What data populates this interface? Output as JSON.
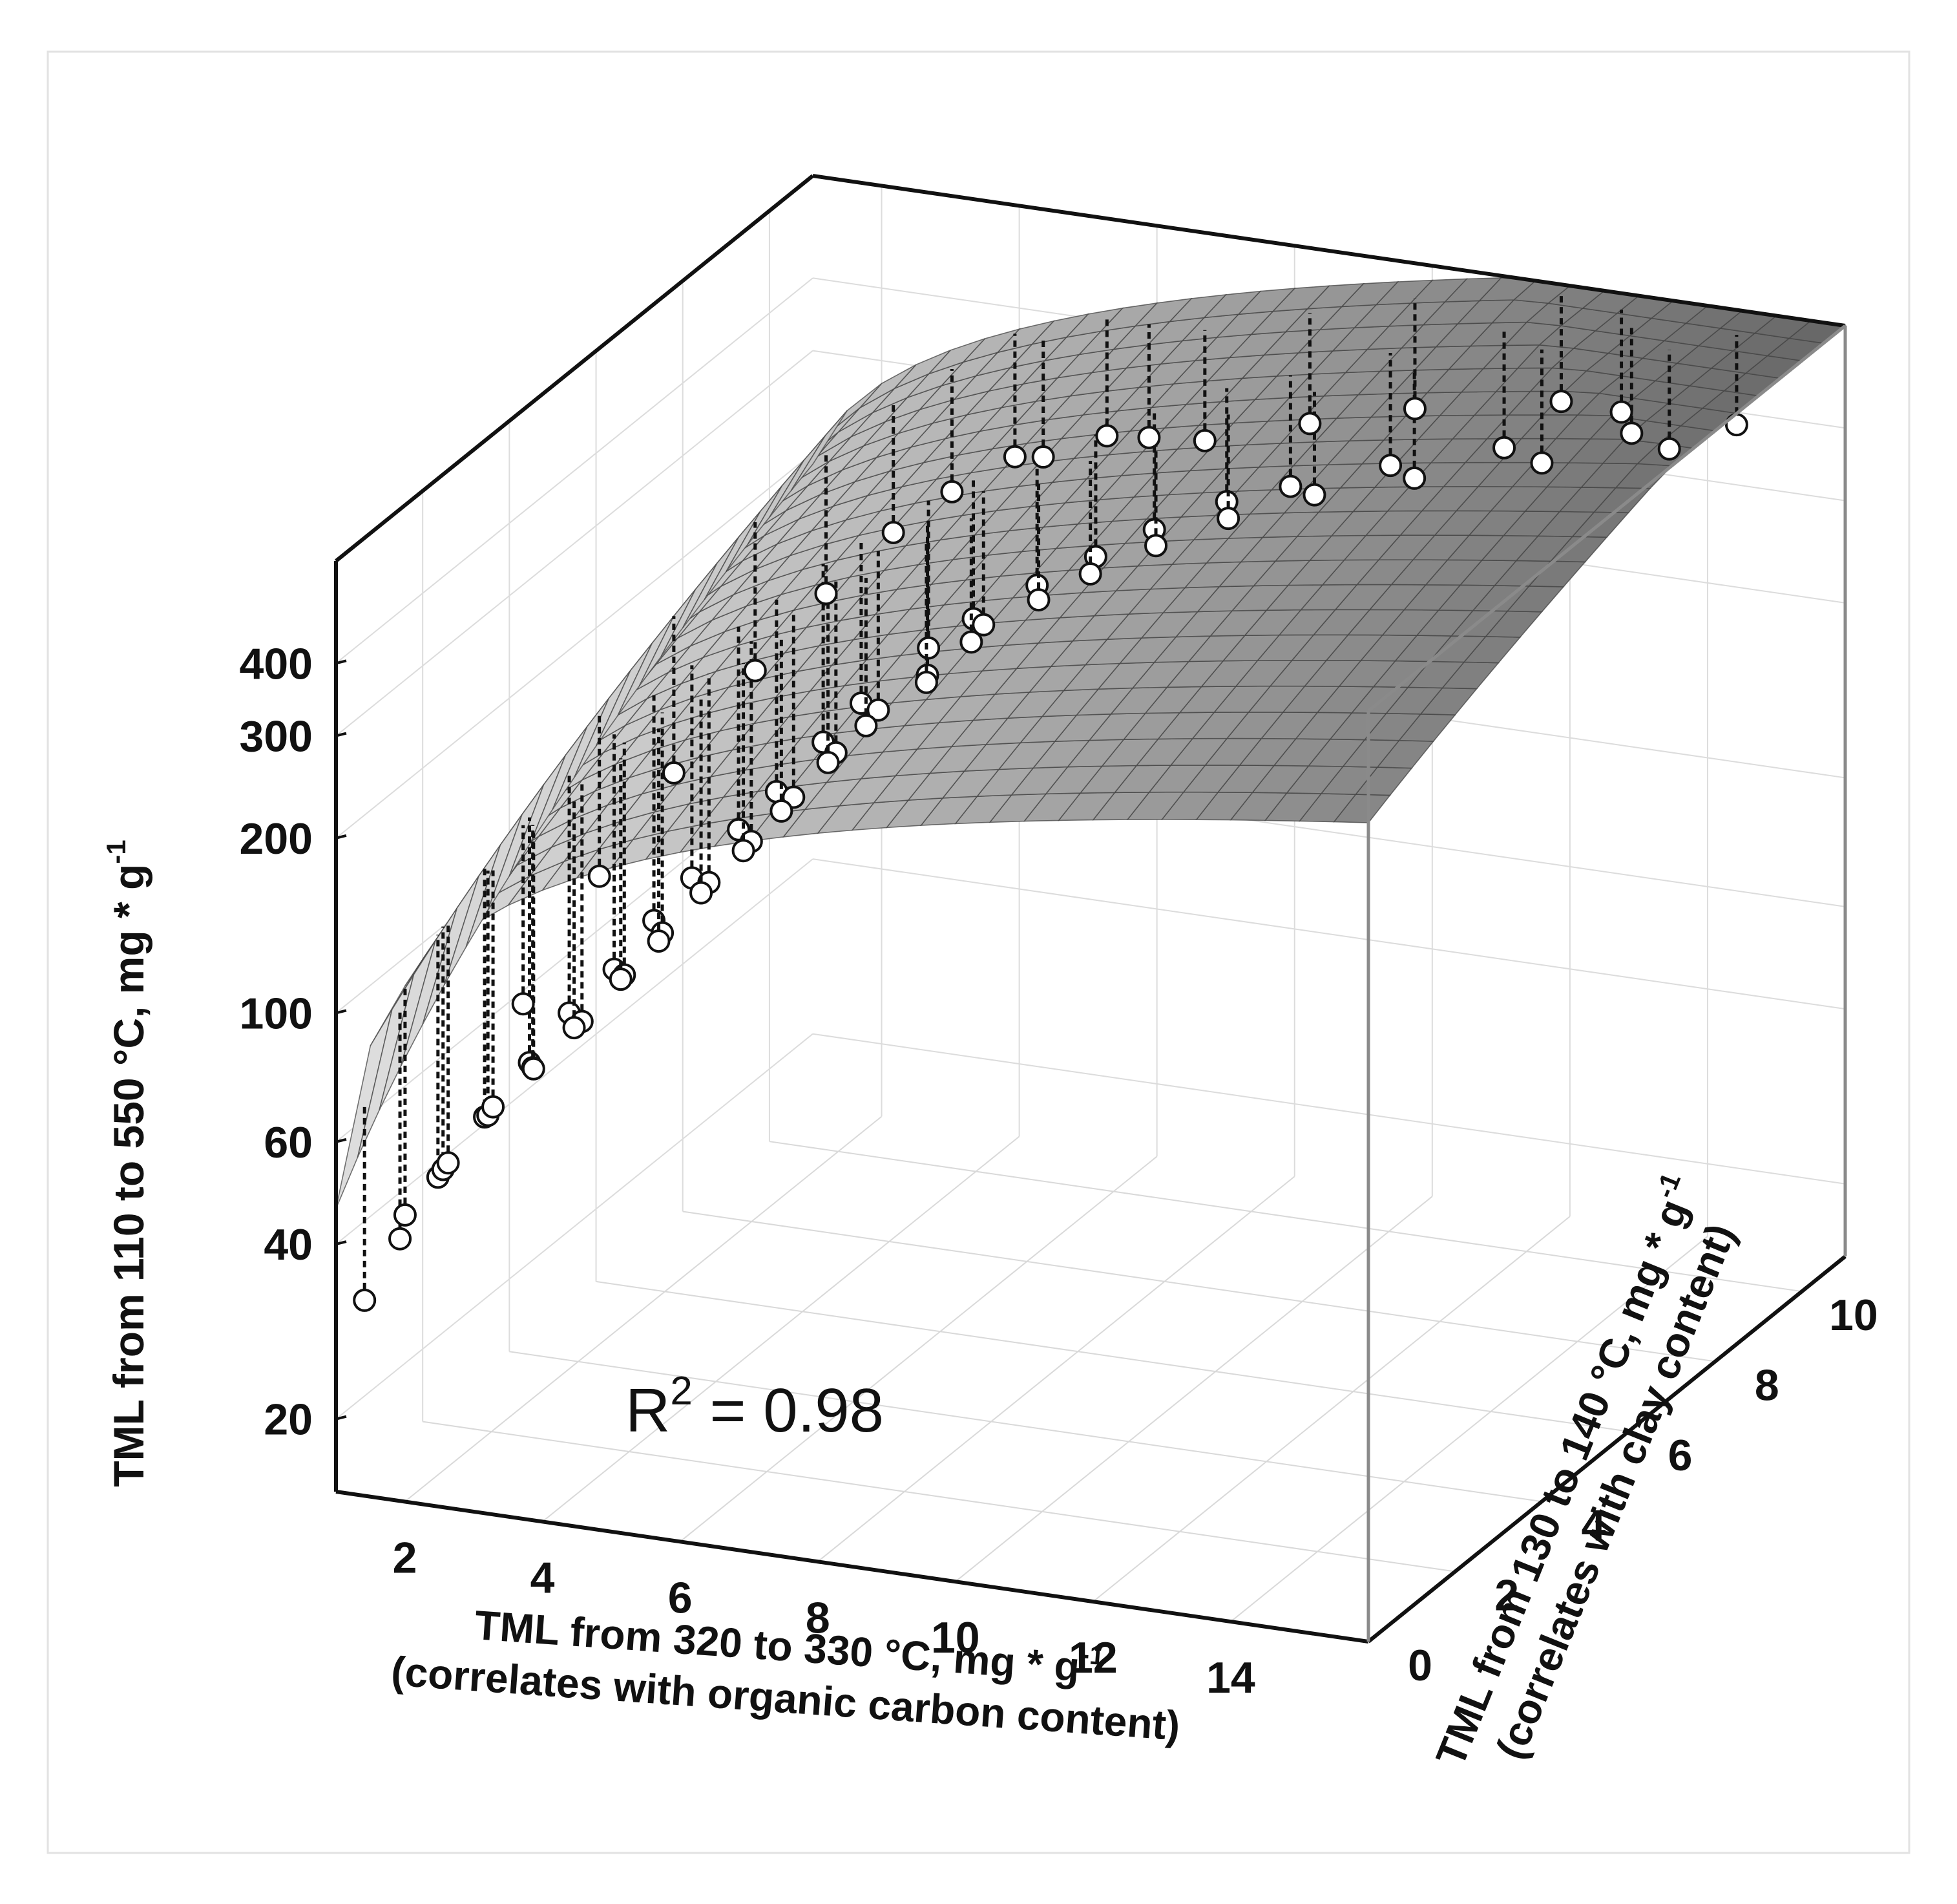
{
  "chart_data": {
    "type": "scatter",
    "subtype": "3d-surface-scatter",
    "annotation": {
      "prefix": "R",
      "superscript": "2",
      "suffix": " = 0.98"
    },
    "x_axis": {
      "label_line1": "TML from 320 to 330 °C, mg * g",
      "label_line1_sup": "-1",
      "label_line2": "(correlates with organic carbon content)",
      "ticks": [
        "2",
        "4",
        "6",
        "8",
        "10",
        "12",
        "14"
      ],
      "range": [
        1,
        16
      ]
    },
    "y_axis": {
      "label_line1": "TML from 130 to 140 °C, mg * g",
      "label_line1_sup": "-1",
      "label_line2": "(correlates with clay content)",
      "ticks": [
        "0",
        "2",
        "4",
        "6",
        "8",
        "10"
      ],
      "range": [
        0,
        11
      ]
    },
    "z_axis": {
      "label": "TML from 110 to 550 °C, mg * g",
      "label_sup": "-1",
      "ticks": [
        "20",
        "40",
        "60",
        "100",
        "200",
        "300",
        "400"
      ],
      "scale": "log",
      "range": [
        15,
        600
      ]
    },
    "surface": {
      "color_light": "#d6d6d6",
      "color_dark": "#5a5a5a",
      "grid": true
    },
    "points": [
      {
        "x": 1.1,
        "y": 0.5,
        "z": 30
      },
      {
        "x": 1.3,
        "y": 1.0,
        "z": 36
      },
      {
        "x": 1.5,
        "y": 0.8,
        "z": 41
      },
      {
        "x": 1.6,
        "y": 1.4,
        "z": 44
      },
      {
        "x": 1.8,
        "y": 1.2,
        "z": 47
      },
      {
        "x": 2.0,
        "y": 1.0,
        "z": 50
      },
      {
        "x": 1.9,
        "y": 2.0,
        "z": 52
      },
      {
        "x": 2.2,
        "y": 1.6,
        "z": 56
      },
      {
        "x": 2.4,
        "y": 1.4,
        "z": 60
      },
      {
        "x": 2.3,
        "y": 2.4,
        "z": 62
      },
      {
        "x": 2.6,
        "y": 2.0,
        "z": 65
      },
      {
        "x": 2.8,
        "y": 1.7,
        "z": 68
      },
      {
        "x": 2.5,
        "y": 3.0,
        "z": 70
      },
      {
        "x": 3.0,
        "y": 2.5,
        "z": 74
      },
      {
        "x": 3.2,
        "y": 2.0,
        "z": 78
      },
      {
        "x": 2.9,
        "y": 3.4,
        "z": 80
      },
      {
        "x": 3.3,
        "y": 3.0,
        "z": 84
      },
      {
        "x": 3.5,
        "y": 2.6,
        "z": 88
      },
      {
        "x": 3.1,
        "y": 4.0,
        "z": 90
      },
      {
        "x": 3.6,
        "y": 3.4,
        "z": 95
      },
      {
        "x": 3.8,
        "y": 3.0,
        "z": 98
      },
      {
        "x": 3.4,
        "y": 4.4,
        "z": 102
      },
      {
        "x": 3.9,
        "y": 4.0,
        "z": 108
      },
      {
        "x": 4.1,
        "y": 3.5,
        "z": 112
      },
      {
        "x": 3.7,
        "y": 5.0,
        "z": 115
      },
      {
        "x": 4.2,
        "y": 4.5,
        "z": 120
      },
      {
        "x": 4.4,
        "y": 4.0,
        "z": 125
      },
      {
        "x": 4.0,
        "y": 5.4,
        "z": 128
      },
      {
        "x": 4.5,
        "y": 5.0,
        "z": 135
      },
      {
        "x": 4.7,
        "y": 4.4,
        "z": 140
      },
      {
        "x": 4.3,
        "y": 6.0,
        "z": 145
      },
      {
        "x": 4.8,
        "y": 5.5,
        "z": 152
      },
      {
        "x": 5.0,
        "y": 5.0,
        "z": 158
      },
      {
        "x": 4.6,
        "y": 6.4,
        "z": 162
      },
      {
        "x": 5.1,
        "y": 6.0,
        "z": 170
      },
      {
        "x": 5.3,
        "y": 5.4,
        "z": 175
      },
      {
        "x": 5.5,
        "y": 6.5,
        "z": 185
      },
      {
        "x": 5.2,
        "y": 7.0,
        "z": 190
      },
      {
        "x": 5.8,
        "y": 6.0,
        "z": 195
      },
      {
        "x": 5.6,
        "y": 7.4,
        "z": 205
      },
      {
        "x": 6.0,
        "y": 7.0,
        "z": 215
      },
      {
        "x": 6.2,
        "y": 6.4,
        "z": 220
      },
      {
        "x": 6.4,
        "y": 7.6,
        "z": 235
      },
      {
        "x": 6.8,
        "y": 7.0,
        "z": 245
      },
      {
        "x": 7.0,
        "y": 8.0,
        "z": 255
      },
      {
        "x": 7.3,
        "y": 7.4,
        "z": 262
      },
      {
        "x": 7.6,
        "y": 8.4,
        "z": 275
      },
      {
        "x": 8.0,
        "y": 7.8,
        "z": 285
      },
      {
        "x": 8.4,
        "y": 8.8,
        "z": 300
      },
      {
        "x": 8.8,
        "y": 8.2,
        "z": 310
      },
      {
        "x": 9.2,
        "y": 9.0,
        "z": 320
      },
      {
        "x": 9.8,
        "y": 8.6,
        "z": 335
      },
      {
        "x": 10.4,
        "y": 9.4,
        "z": 345
      },
      {
        "x": 11.0,
        "y": 9.0,
        "z": 355
      },
      {
        "x": 11.8,
        "y": 9.8,
        "z": 370
      },
      {
        "x": 12.6,
        "y": 9.4,
        "z": 380
      },
      {
        "x": 13.4,
        "y": 10.2,
        "z": 395
      },
      {
        "x": 14.2,
        "y": 9.8,
        "z": 405
      },
      {
        "x": 14.8,
        "y": 10.4,
        "z": 420
      },
      {
        "x": 13.0,
        "y": 10.6,
        "z": 400
      },
      {
        "x": 12.0,
        "y": 10.8,
        "z": 390
      },
      {
        "x": 10.0,
        "y": 10.6,
        "z": 360
      },
      {
        "x": 8.6,
        "y": 10.4,
        "z": 330
      },
      {
        "x": 7.2,
        "y": 10.2,
        "z": 300
      },
      {
        "x": 6.2,
        "y": 10.5,
        "z": 280
      },
      {
        "x": 5.4,
        "y": 10.8,
        "z": 262
      },
      {
        "x": 4.6,
        "y": 10.6,
        "z": 240
      },
      {
        "x": 4.0,
        "y": 10.9,
        "z": 225
      },
      {
        "x": 3.4,
        "y": 10.4,
        "z": 205
      },
      {
        "x": 2.8,
        "y": 10.0,
        "z": 180
      },
      {
        "x": 2.2,
        "y": 9.4,
        "z": 150
      },
      {
        "x": 1.8,
        "y": 8.4,
        "z": 125
      },
      {
        "x": 1.5,
        "y": 7.0,
        "z": 100
      },
      {
        "x": 1.3,
        "y": 5.6,
        "z": 80
      },
      {
        "x": 1.2,
        "y": 4.0,
        "z": 60
      }
    ]
  }
}
